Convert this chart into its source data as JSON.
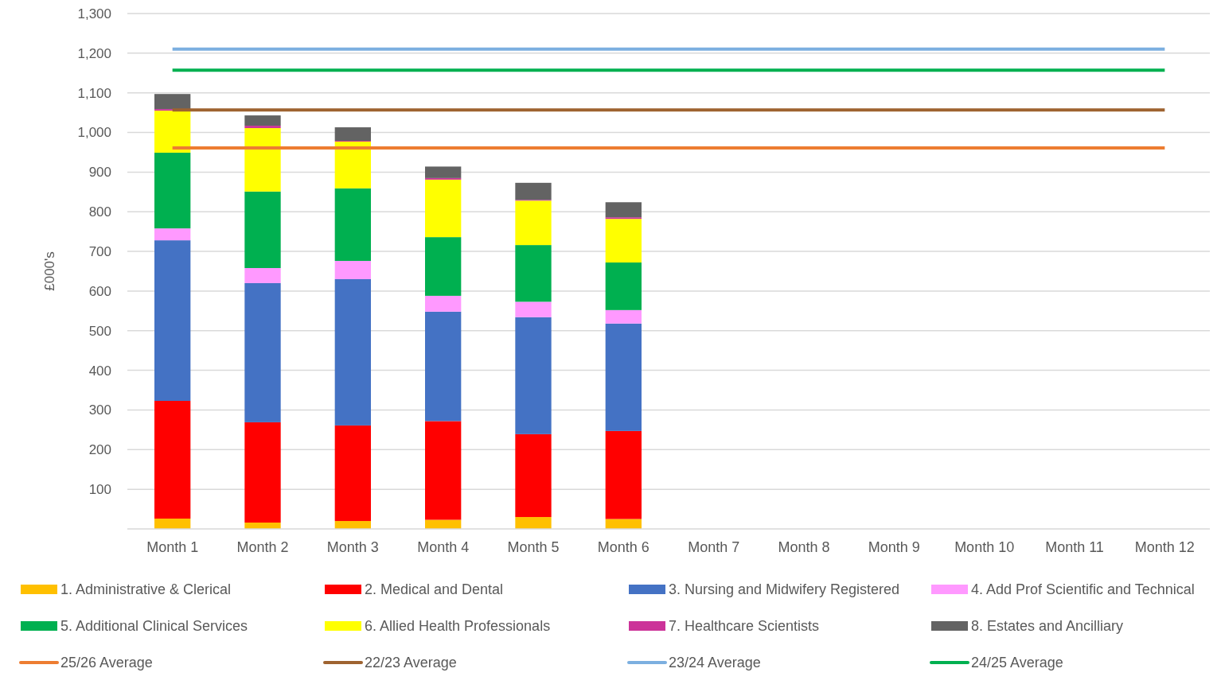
{
  "chart_data": {
    "type": "bar",
    "stacked": true,
    "ylabel": "£000's",
    "categories": [
      "Month 1",
      "Month 2",
      "Month 3",
      "Month 4",
      "Month 5",
      "Month 6",
      "Month 7",
      "Month 8",
      "Month 9",
      "Month 10",
      "Month 11",
      "Month 12"
    ],
    "ylim": [
      0,
      1300
    ],
    "yticks": [
      {
        "value": 100,
        "label": "100"
      },
      {
        "value": 200,
        "label": "200"
      },
      {
        "value": 300,
        "label": "300"
      },
      {
        "value": 400,
        "label": "400"
      },
      {
        "value": 500,
        "label": "500"
      },
      {
        "value": 600,
        "label": "600"
      },
      {
        "value": 700,
        "label": "700"
      },
      {
        "value": 800,
        "label": "800"
      },
      {
        "value": 900,
        "label": "900"
      },
      {
        "value": 1000,
        "label": "1,000"
      },
      {
        "value": 1100,
        "label": "1,100"
      },
      {
        "value": 1200,
        "label": "1,200"
      },
      {
        "value": 1300,
        "label": "1,300"
      }
    ],
    "grid": "y",
    "legend": "bottom",
    "marker": "none",
    "series": [
      {
        "name": "1. Administrative & Clerical",
        "color": "#ffc000",
        "values": [
          26,
          16,
          20,
          23,
          30,
          25,
          null,
          null,
          null,
          null,
          null,
          null
        ]
      },
      {
        "name": "2. Medical and Dental",
        "color": "#ff0000",
        "values": [
          297,
          253,
          241,
          249,
          209,
          222,
          null,
          null,
          null,
          null,
          null,
          null
        ]
      },
      {
        "name": "3. Nursing and Midwifery Registered",
        "color": "#4472c4",
        "values": [
          405,
          351,
          369,
          276,
          295,
          271,
          null,
          null,
          null,
          null,
          null,
          null
        ]
      },
      {
        "name": "4. Add Prof Scientific and Technical",
        "color": "#ff99ff",
        "values": [
          30,
          38,
          46,
          40,
          39,
          34,
          null,
          null,
          null,
          null,
          null,
          null
        ]
      },
      {
        "name": "5. Additional Clinical Services",
        "color": "#00b050",
        "values": [
          191,
          193,
          183,
          148,
          143,
          120,
          null,
          null,
          null,
          null,
          null,
          null
        ]
      },
      {
        "name": "6. Allied Health Professionals",
        "color": "#ffff00",
        "values": [
          106,
          160,
          118,
          145,
          112,
          110,
          null,
          null,
          null,
          null,
          null,
          null
        ]
      },
      {
        "name": "7. Healthcare Scientists",
        "color": "#cc3399",
        "values": [
          4,
          6,
          2,
          4,
          2,
          4,
          null,
          null,
          null,
          null,
          null,
          null
        ]
      },
      {
        "name": "8. Estates and Ancilliary",
        "color": "#636363",
        "values": [
          38,
          26,
          34,
          29,
          43,
          38,
          null,
          null,
          null,
          null,
          null,
          null
        ]
      },
      {
        "name": "25/26 Average",
        "type": "line",
        "color": "#ed7d31",
        "values": [
          961,
          961,
          961,
          961,
          961,
          961,
          961,
          961,
          961,
          961,
          961,
          961
        ]
      },
      {
        "name": "22/23 Average",
        "type": "line",
        "color": "#9e6330",
        "values": [
          1057,
          1057,
          1057,
          1057,
          1057,
          1057,
          1057,
          1057,
          1057,
          1057,
          1057,
          1057
        ]
      },
      {
        "name": "23/24 Average",
        "type": "line",
        "color": "#7cafe0",
        "values": [
          1210,
          1210,
          1210,
          1210,
          1210,
          1210,
          1210,
          1210,
          1210,
          1210,
          1210,
          1210
        ]
      },
      {
        "name": "24/25 Average",
        "type": "line",
        "color": "#00b050",
        "values": [
          1157,
          1157,
          1157,
          1157,
          1157,
          1157,
          1157,
          1157,
          1157,
          1157,
          1157,
          1157
        ]
      }
    ]
  }
}
